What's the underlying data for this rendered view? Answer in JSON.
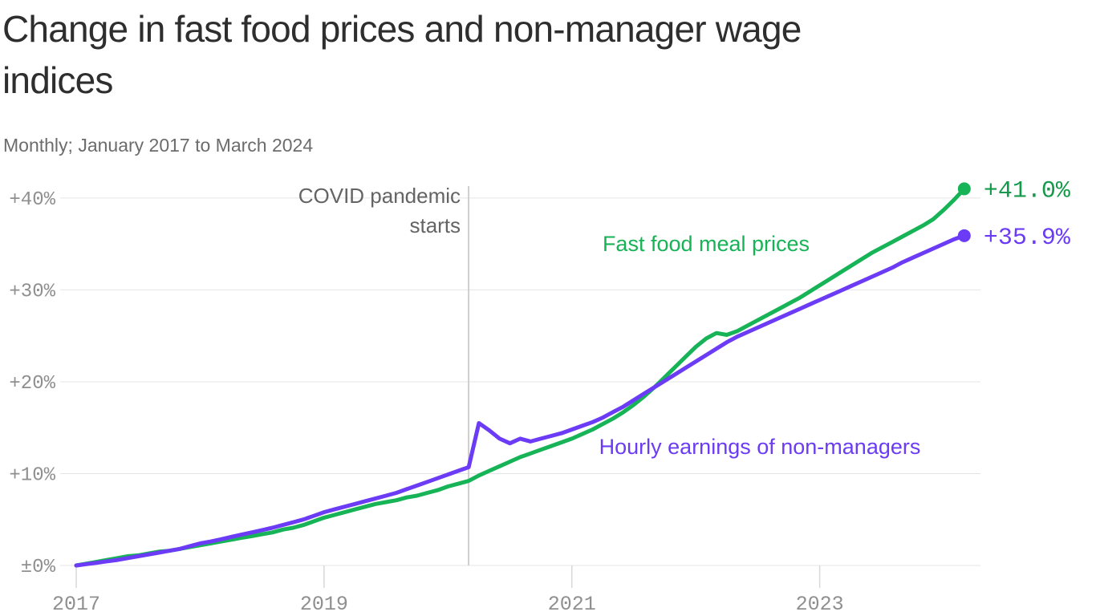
{
  "header": {
    "title_line1": "Change in fast food prices and non-manager wage",
    "title_line2": "indices",
    "subtitle": "Monthly; January 2017 to March 2024"
  },
  "colors": {
    "title_text": "#2e2e2e",
    "subtitle_text": "#6c6c6c",
    "grid_line": "#e4e4e4",
    "tick_line": "#d8d8d8",
    "axis_text": "#8f8f8f",
    "annotation_line": "#cfcfcf",
    "annotation_text": "#646464",
    "fast_food_line": "#17b357",
    "fast_food_value_text": "#149a4a",
    "wages_line": "#6b3bf5",
    "wages_value_text": "#6b3bf5"
  },
  "chart_data": {
    "type": "line",
    "title": "Change in fast food prices and non-manager wage indices",
    "subtitle": "Monthly; January 2017 to March 2024",
    "x_range": "January 2017 to March 2024, monthly (month index 0-86)",
    "ylim": [
      0,
      41
    ],
    "grid": "horizontal",
    "y_ticks": [
      0,
      10,
      20,
      30,
      40
    ],
    "y_tick_labels": [
      "±0%",
      "+10%",
      "+20%",
      "+30%",
      "+40%"
    ],
    "x_ticks": [
      {
        "month": 0,
        "label": "2017"
      },
      {
        "month": 24,
        "label": "2019"
      },
      {
        "month": 48,
        "label": "2021"
      },
      {
        "month": 72,
        "label": "2023"
      }
    ],
    "annotation": {
      "text_line1": "COVID pandemic",
      "text_line2": "starts",
      "month": 38
    },
    "series": [
      {
        "name": "Fast food meal prices",
        "end_label": "+41.0%",
        "color_key": "fast_food_line",
        "label_color_key": "fast_food_value_text",
        "values": [
          0.0,
          0.2,
          0.4,
          0.6,
          0.8,
          1.0,
          1.1,
          1.3,
          1.5,
          1.6,
          1.8,
          2.0,
          2.2,
          2.4,
          2.6,
          2.8,
          3.0,
          3.2,
          3.4,
          3.6,
          3.9,
          4.1,
          4.4,
          4.8,
          5.2,
          5.5,
          5.8,
          6.1,
          6.4,
          6.7,
          6.9,
          7.1,
          7.4,
          7.6,
          7.9,
          8.2,
          8.6,
          8.9,
          9.2,
          9.8,
          10.3,
          10.8,
          11.3,
          11.8,
          12.2,
          12.6,
          13.0,
          13.4,
          13.8,
          14.3,
          14.8,
          15.4,
          16.0,
          16.7,
          17.5,
          18.4,
          19.4,
          20.5,
          21.6,
          22.7,
          23.8,
          24.7,
          25.3,
          25.1,
          25.5,
          26.1,
          26.7,
          27.3,
          27.9,
          28.5,
          29.1,
          29.8,
          30.5,
          31.2,
          31.9,
          32.6,
          33.3,
          34.0,
          34.6,
          35.2,
          35.8,
          36.4,
          37.0,
          37.7,
          38.7,
          39.8,
          41.0
        ]
      },
      {
        "name": "Hourly earnings of non-managers",
        "end_label": "+35.9%",
        "color_key": "wages_line",
        "label_color_key": "wages_value_text",
        "values": [
          0.0,
          0.15,
          0.3,
          0.45,
          0.6,
          0.8,
          1.0,
          1.2,
          1.4,
          1.6,
          1.8,
          2.1,
          2.4,
          2.6,
          2.85,
          3.1,
          3.35,
          3.6,
          3.85,
          4.1,
          4.4,
          4.7,
          5.0,
          5.4,
          5.8,
          6.1,
          6.4,
          6.7,
          7.0,
          7.3,
          7.6,
          7.9,
          8.3,
          8.7,
          9.1,
          9.5,
          9.9,
          10.3,
          10.7,
          15.5,
          14.7,
          13.8,
          13.3,
          13.8,
          13.5,
          13.8,
          14.1,
          14.4,
          14.8,
          15.2,
          15.6,
          16.1,
          16.7,
          17.3,
          18.0,
          18.7,
          19.4,
          20.1,
          20.8,
          21.5,
          22.2,
          22.9,
          23.6,
          24.3,
          24.9,
          25.4,
          25.9,
          26.4,
          26.9,
          27.4,
          27.9,
          28.4,
          28.9,
          29.4,
          29.9,
          30.4,
          30.9,
          31.4,
          31.9,
          32.4,
          33.0,
          33.5,
          34.0,
          34.5,
          35.0,
          35.5,
          35.9
        ]
      }
    ],
    "legend_position": "inline-labels-on-chart"
  }
}
